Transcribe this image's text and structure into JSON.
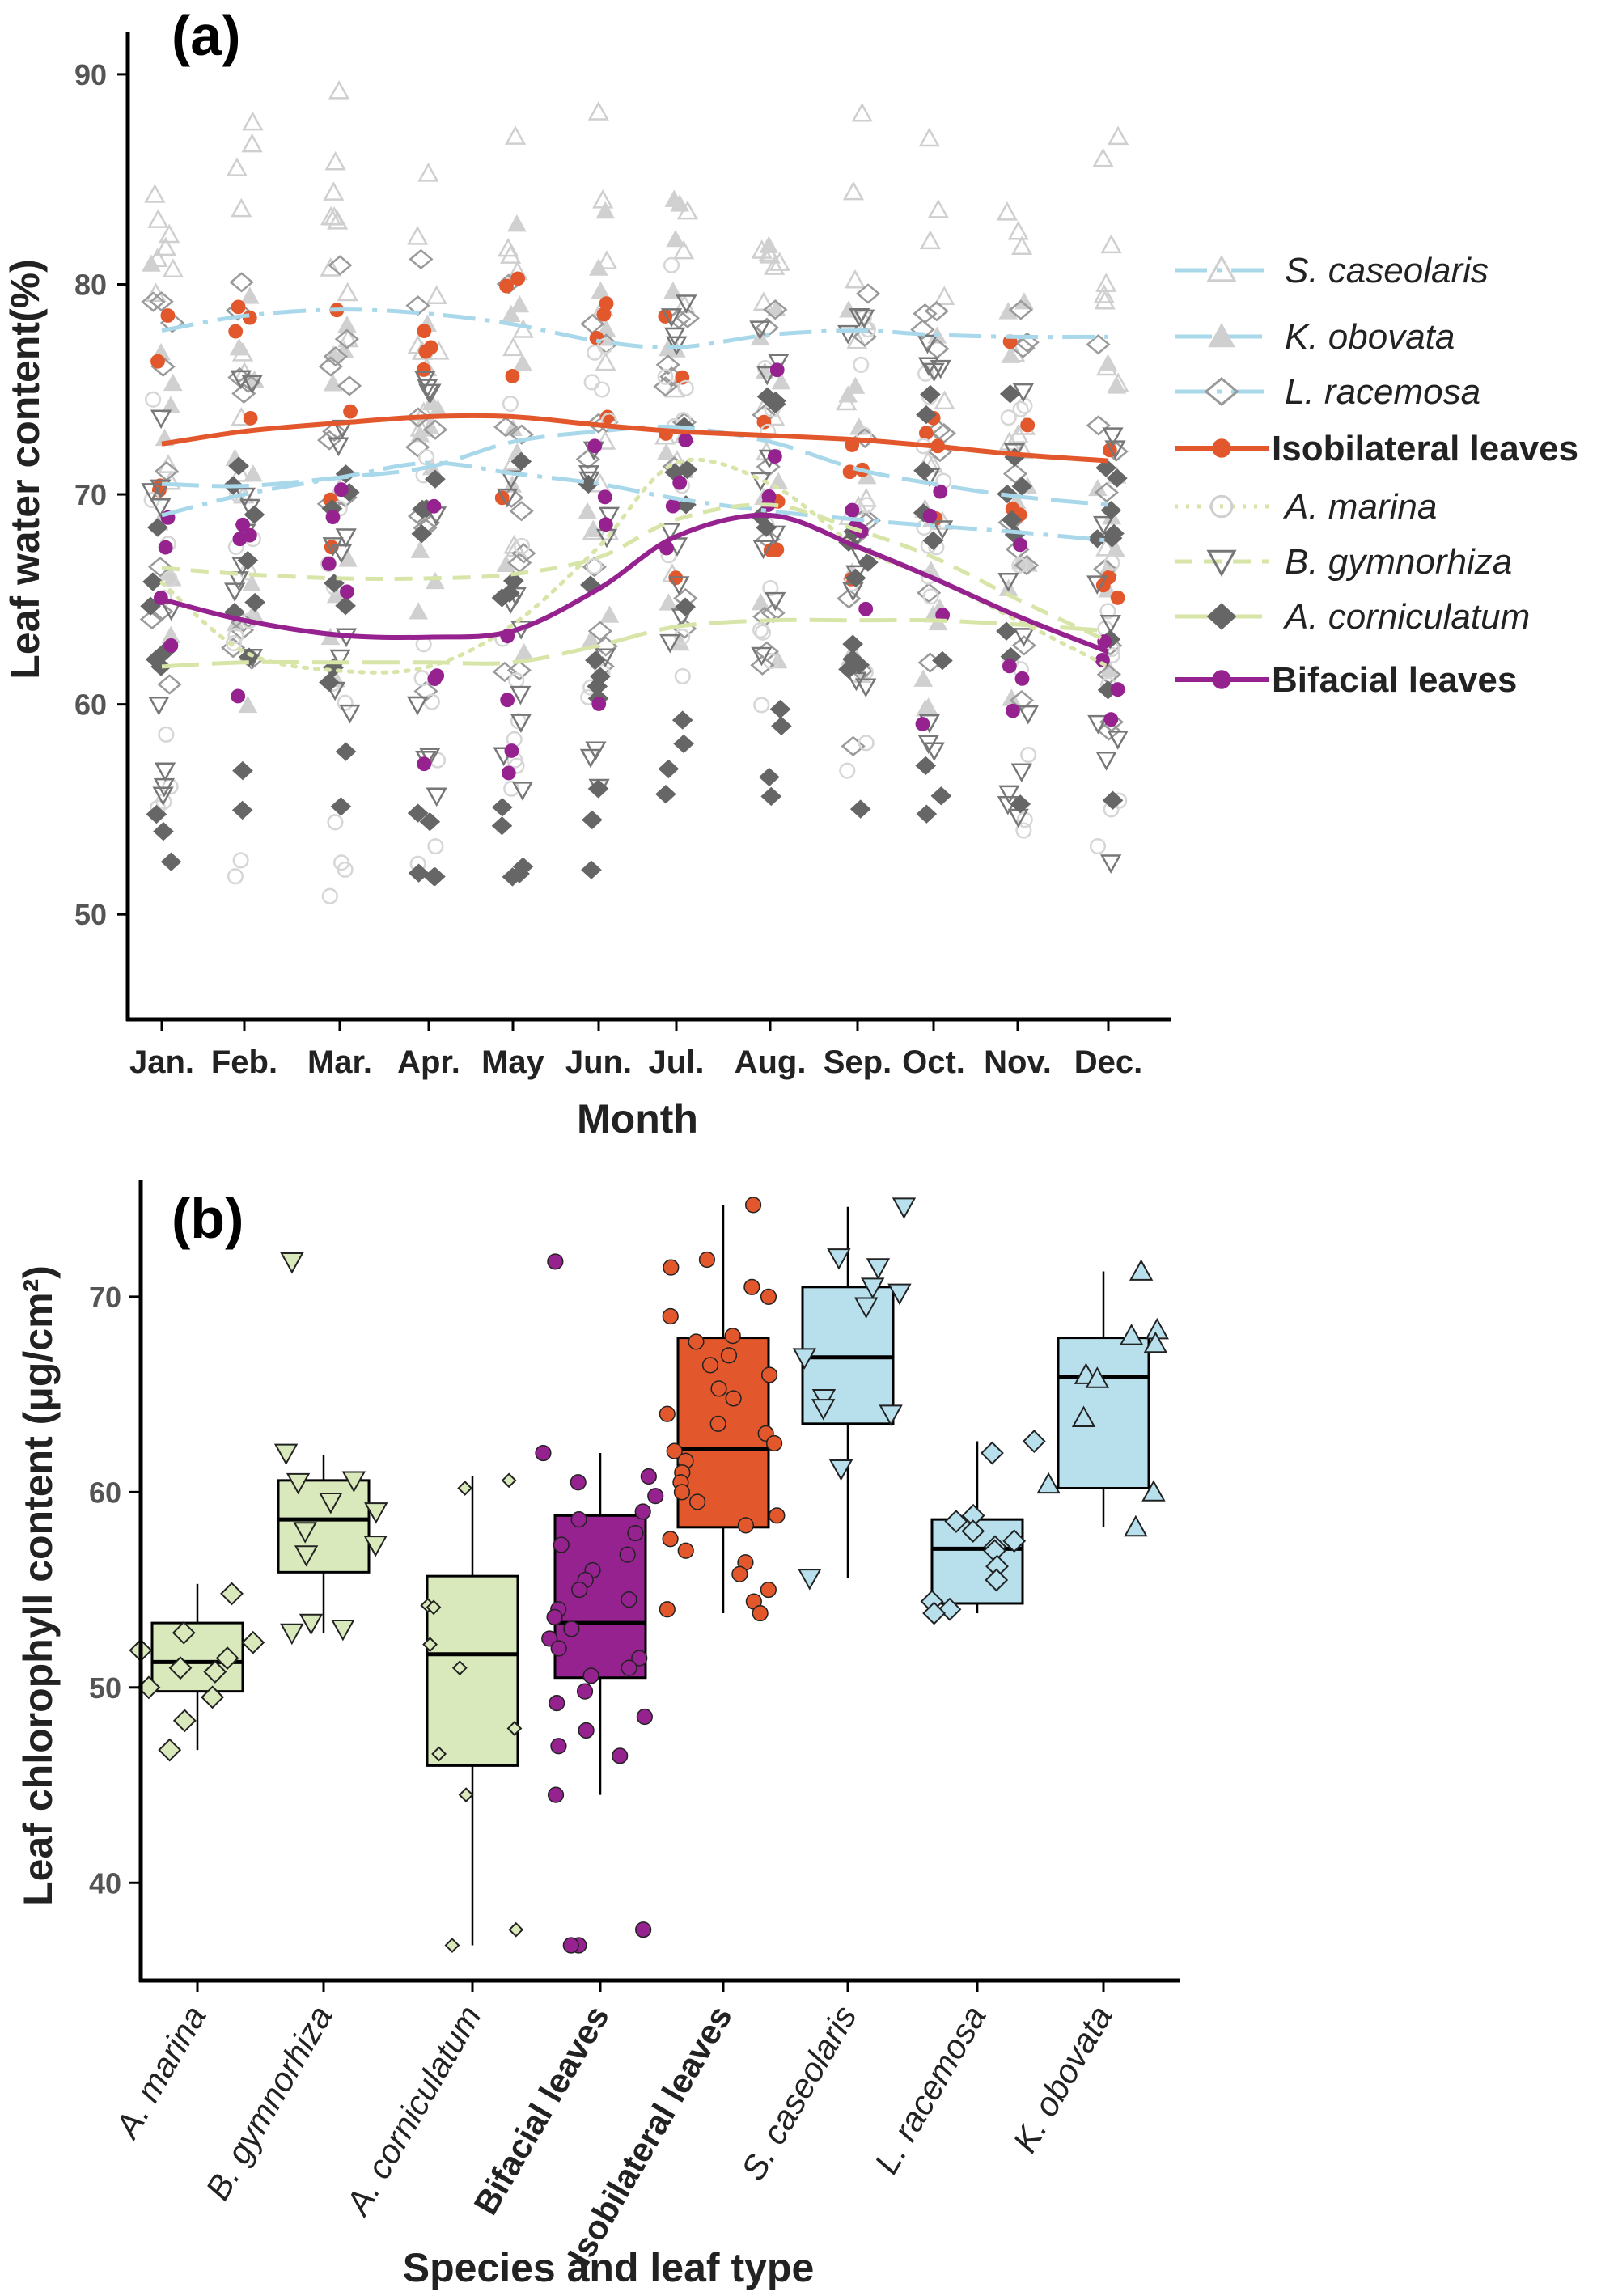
{
  "chart_data": [
    {
      "type": "line",
      "panel_label": "(a)",
      "xlabel": "Month",
      "ylabel": "Leaf water content(%)",
      "categories": [
        "Jan.",
        "Feb.",
        "Mar.",
        "Apr.",
        "May",
        "Jun.",
        "Jul.",
        "Aug.",
        "Sep.",
        "Oct.",
        "Nov.",
        "Dec."
      ],
      "ylim": [
        45,
        92
      ],
      "yticks": [
        "50",
        "60",
        "70",
        "80",
        "90"
      ],
      "ytick_values": [
        50,
        60,
        70,
        80,
        90
      ],
      "grid": false,
      "legend_position": "right",
      "series": [
        {
          "name": "S. caseolaris",
          "color": "#a8d8ea",
          "dash": "dashdot",
          "marker": "open-triangle",
          "italic": true,
          "bold": false,
          "values": [
            77.8,
            78.5,
            78.8,
            78.6,
            78.1,
            77.3,
            77.0,
            77.6,
            77.8,
            77.6,
            77.5,
            77.5
          ]
        },
        {
          "name": "K. obovata",
          "color": "#a8d8ea",
          "dash": "longdash",
          "marker": "filled-triangle",
          "italic": true,
          "bold": false,
          "values": [
            70.5,
            70.4,
            70.8,
            71.3,
            72.5,
            73.0,
            73.2,
            72.5,
            71.2,
            70.5,
            69.9,
            69.5
          ]
        },
        {
          "name": "L. racemosa",
          "color": "#a8d8ea",
          "dash": "dashdot",
          "marker": "open-diamond",
          "italic": true,
          "bold": false,
          "values": [
            69.0,
            70.0,
            70.8,
            71.5,
            71.0,
            70.5,
            69.8,
            69.2,
            68.8,
            68.5,
            68.2,
            67.8
          ]
        },
        {
          "name": "Isobilateral leaves",
          "color": "#e2572b",
          "dash": "solid",
          "marker": "filled-circle",
          "italic": false,
          "bold": true,
          "values": [
            72.4,
            73.0,
            73.4,
            73.7,
            73.7,
            73.3,
            73.0,
            72.8,
            72.6,
            72.3,
            71.9,
            71.6
          ]
        },
        {
          "name": "A. marina",
          "color": "#d7e6a8",
          "dash": "dotted",
          "marker": "open-circle",
          "italic": true,
          "bold": false,
          "values": [
            65.8,
            62.5,
            61.6,
            61.8,
            63.8,
            67.5,
            71.5,
            70.5,
            67.5,
            66.0,
            64.0,
            61.8
          ]
        },
        {
          "name": "B. gymnorhiza",
          "color": "#d7e6a8",
          "dash": "dashed",
          "marker": "open-down-triangle",
          "italic": true,
          "bold": false,
          "values": [
            66.5,
            66.2,
            66.0,
            66.0,
            66.2,
            67.0,
            68.8,
            69.5,
            68.3,
            67.0,
            65.0,
            63.0
          ]
        },
        {
          "name": "A. corniculatum",
          "color": "#d7e6a8",
          "dash": "longdash",
          "marker": "filled-diamond",
          "italic": true,
          "bold": false,
          "values": [
            61.8,
            62.0,
            62.0,
            62.0,
            62.0,
            62.8,
            63.7,
            64.0,
            64.0,
            64.0,
            63.8,
            63.5
          ]
        },
        {
          "name": "Bifacial leaves",
          "color": "#95228f",
          "dash": "solid",
          "marker": "filled-circle",
          "italic": false,
          "bold": true,
          "values": [
            65.0,
            64.0,
            63.3,
            63.2,
            63.5,
            65.5,
            68.0,
            69.0,
            67.5,
            66.0,
            64.2,
            62.5
          ]
        }
      ]
    },
    {
      "type": "box",
      "panel_label": "(b)",
      "xlabel": "Species and leaf type",
      "ylabel": "Leaf chlorophyll content (μg/cm²)",
      "ylim": [
        35,
        76
      ],
      "yticks": [
        "40",
        "50",
        "60",
        "70"
      ],
      "ytick_values": [
        40,
        50,
        60,
        70
      ],
      "grid": false,
      "boxes": [
        {
          "category": "A. marina",
          "italic": true,
          "bold": false,
          "color": "#d9e9bc",
          "marker": "diamond",
          "min": 46.8,
          "q1": 49.8,
          "median": 51.3,
          "q3": 53.3,
          "max": 55.3,
          "points": [
            54.8,
            52.8,
            52.3,
            51.9,
            51.5,
            51.0,
            50.8,
            50.0,
            49.5,
            48.3,
            46.8
          ]
        },
        {
          "category": "B. gymnorhiza",
          "italic": true,
          "bold": false,
          "color": "#d9e9bc",
          "marker": "down-triangle",
          "min": 52.8,
          "q1": 55.9,
          "median": 58.6,
          "q3": 60.6,
          "max": 61.9,
          "points": [
            71.8,
            62.0,
            60.6,
            60.5,
            59.5,
            59.0,
            58.0,
            57.3,
            56.8,
            53.3,
            53.0,
            52.8
          ]
        },
        {
          "category": "A. corniculatum",
          "italic": true,
          "bold": false,
          "color": "#d9e9bc",
          "marker": "small-diamond",
          "min": 36.8,
          "q1": 46.0,
          "median": 51.7,
          "q3": 55.7,
          "max": 60.8,
          "points": [
            60.6,
            60.2,
            54.2,
            54.1,
            52.2,
            51.0,
            47.9,
            46.6,
            44.5,
            37.6,
            36.8
          ]
        },
        {
          "category": "Bifacial leaves",
          "italic": false,
          "bold": true,
          "color": "#95228f",
          "marker": "circle",
          "min": 44.5,
          "q1": 50.5,
          "median": 53.3,
          "q3": 58.8,
          "max": 62.0,
          "points": [
            71.8,
            62.0,
            60.8,
            60.5,
            59.8,
            59.0,
            58.6,
            57.9,
            57.3,
            56.8,
            56.0,
            55.5,
            55.0,
            54.5,
            54.0,
            53.6,
            53.0,
            52.5,
            52.0,
            51.5,
            51.0,
            50.6,
            49.8,
            49.2,
            48.5,
            47.8,
            47.0,
            46.5,
            44.5,
            37.6,
            36.8,
            36.8
          ]
        },
        {
          "category": "Isobilateral leaves",
          "italic": false,
          "bold": true,
          "color": "#e2572b",
          "marker": "circle",
          "min": 53.8,
          "q1": 58.2,
          "median": 62.2,
          "q3": 67.9,
          "max": 74.7,
          "points": [
            74.7,
            71.9,
            71.5,
            70.5,
            70.0,
            69.0,
            68.0,
            67.7,
            67.0,
            66.5,
            66.0,
            65.3,
            64.8,
            64.0,
            63.5,
            63.0,
            62.5,
            62.1,
            61.6,
            61.0,
            60.5,
            60.0,
            59.5,
            58.8,
            58.3,
            57.6,
            57.0,
            56.4,
            55.8,
            55.0,
            54.4,
            54.0,
            53.8
          ]
        },
        {
          "category": "S. caseolaris",
          "italic": true,
          "bold": false,
          "color": "#b7dfec",
          "marker": "down-triangle",
          "min": 55.6,
          "q1": 63.5,
          "median": 66.9,
          "q3": 70.5,
          "max": 74.6,
          "points": [
            74.6,
            72.0,
            71.5,
            70.5,
            70.2,
            69.5,
            66.9,
            64.8,
            64.3,
            64.0,
            61.2,
            55.6
          ]
        },
        {
          "category": "L. racemosa",
          "italic": true,
          "bold": false,
          "color": "#b7dfec",
          "marker": "diamond",
          "min": 53.8,
          "q1": 54.3,
          "median": 57.1,
          "q3": 58.6,
          "max": 62.6,
          "points": [
            62.6,
            62.0,
            58.8,
            58.5,
            58.0,
            57.5,
            57.2,
            57.0,
            56.2,
            55.5,
            54.4,
            54.0,
            53.8
          ]
        },
        {
          "category": "K. obovata",
          "italic": true,
          "bold": false,
          "color": "#b7dfec",
          "marker": "up-triangle",
          "min": 58.2,
          "q1": 60.2,
          "median": 65.9,
          "q3": 67.9,
          "max": 71.3,
          "points": [
            71.3,
            68.3,
            68.0,
            67.6,
            66.0,
            65.8,
            63.8,
            60.4,
            60.0,
            58.2
          ]
        }
      ]
    }
  ]
}
